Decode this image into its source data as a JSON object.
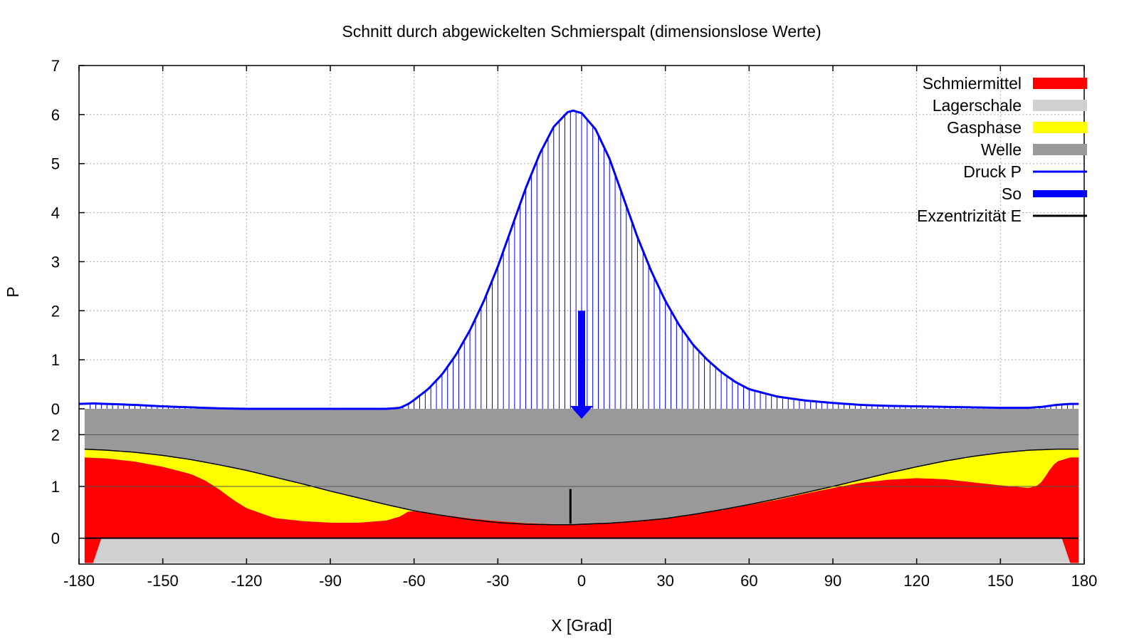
{
  "chart_data": {
    "type": "area",
    "title": "Schnitt durch abgewickelten Schmierspalt (dimensionslose Werte)",
    "xlabel": "X [Grad]",
    "ylabel": "P",
    "xlim": [
      -180,
      180
    ],
    "ylim_pressure": [
      0,
      7
    ],
    "ylim_gap": [
      -0.5,
      2.5
    ],
    "x_ticks": [
      "-180",
      "-150",
      "-120",
      "-90",
      "-60",
      "-30",
      "0",
      "30",
      "60",
      "90",
      "120",
      "150",
      "180"
    ],
    "y_ticks_pressure": [
      "0",
      "1",
      "2",
      "3",
      "4",
      "5",
      "6",
      "7"
    ],
    "y_ticks_gap": [
      "0",
      "1",
      "2"
    ],
    "grid": true,
    "legend_position": "top-right",
    "colors": {
      "schmiermittel": "#ff0000",
      "lagerschale": "#d0d0d0",
      "gasphase": "#ffff00",
      "welle": "#999999",
      "druck": "#0000ff",
      "so": "#0000ff",
      "exzentrizitaet": "#000000"
    },
    "series": [
      {
        "name": "Schmiermittel",
        "kind": "filled-area",
        "x": [
          -178,
          -170,
          -160,
          -150,
          -140,
          -135,
          -130,
          -125,
          -120,
          -110,
          -100,
          -90,
          -80,
          -70,
          -65,
          -62,
          -60,
          -50,
          -40,
          -30,
          -20,
          -10,
          -4,
          0,
          10,
          20,
          30,
          40,
          50,
          60,
          70,
          80,
          90,
          100,
          110,
          120,
          130,
          140,
          150,
          155,
          160,
          163,
          165,
          168,
          170,
          175,
          178
        ],
        "y": [
          1.56,
          1.54,
          1.48,
          1.38,
          1.24,
          1.12,
          0.95,
          0.75,
          0.58,
          0.39,
          0.33,
          0.3,
          0.3,
          0.34,
          0.42,
          0.52,
          0.52,
          0.45,
          0.38,
          0.33,
          0.29,
          0.27,
          0.27,
          0.27,
          0.29,
          0.33,
          0.38,
          0.45,
          0.54,
          0.64,
          0.74,
          0.86,
          0.97,
          1.07,
          1.13,
          1.16,
          1.14,
          1.08,
          1.02,
          1.0,
          0.97,
          1.01,
          1.1,
          1.35,
          1.48,
          1.56,
          1.56
        ]
      },
      {
        "name": "Lagerschale",
        "kind": "band",
        "ymin": -0.48,
        "ymax": 0
      },
      {
        "name": "Gasphase",
        "kind": "filled-between-lubricant-and-shaft"
      },
      {
        "name": "Welle",
        "x": [
          -178,
          -170,
          -160,
          -150,
          -140,
          -130,
          -120,
          -110,
          -100,
          -90,
          -80,
          -70,
          -60,
          -50,
          -40,
          -30,
          -20,
          -10,
          -4,
          0,
          10,
          20,
          30,
          40,
          50,
          60,
          70,
          80,
          90,
          100,
          110,
          120,
          130,
          140,
          150,
          160,
          170,
          178
        ],
        "y": [
          1.72,
          1.7,
          1.66,
          1.6,
          1.52,
          1.42,
          1.31,
          1.18,
          1.05,
          0.91,
          0.78,
          0.65,
          0.53,
          0.44,
          0.36,
          0.3,
          0.27,
          0.26,
          0.26,
          0.27,
          0.29,
          0.33,
          0.38,
          0.46,
          0.55,
          0.65,
          0.76,
          0.88,
          1.0,
          1.13,
          1.26,
          1.38,
          1.49,
          1.58,
          1.65,
          1.7,
          1.72,
          1.72
        ]
      },
      {
        "name": "Druck P",
        "x": [
          -180,
          -175,
          -170,
          -160,
          -150,
          -140,
          -130,
          -120,
          -110,
          -100,
          -90,
          -80,
          -70,
          -65,
          -62,
          -60,
          -55,
          -50,
          -45,
          -40,
          -35,
          -30,
          -25,
          -20,
          -15,
          -10,
          -5,
          -3,
          0,
          5,
          10,
          15,
          20,
          25,
          30,
          35,
          40,
          45,
          50,
          55,
          60,
          70,
          80,
          90,
          100,
          110,
          120,
          130,
          140,
          150,
          160,
          165,
          170,
          175,
          178
        ],
        "y": [
          0.1,
          0.11,
          0.1,
          0.08,
          0.05,
          0.03,
          0.01,
          0.0,
          0.0,
          0.0,
          0.0,
          0.0,
          0.0,
          0.02,
          0.1,
          0.18,
          0.4,
          0.7,
          1.1,
          1.6,
          2.2,
          2.9,
          3.7,
          4.5,
          5.2,
          5.75,
          6.05,
          6.08,
          6.03,
          5.7,
          5.1,
          4.3,
          3.5,
          2.8,
          2.2,
          1.7,
          1.3,
          1.0,
          0.75,
          0.55,
          0.4,
          0.25,
          0.17,
          0.12,
          0.08,
          0.06,
          0.05,
          0.04,
          0.03,
          0.02,
          0.02,
          0.04,
          0.08,
          0.1,
          0.1
        ]
      },
      {
        "name": "So",
        "x": 0,
        "y_from": 2.0,
        "y_to": 0
      },
      {
        "name": "Exzentrizität E",
        "x": -4,
        "y_from": 0.28,
        "y_to": 0.95
      }
    ]
  }
}
